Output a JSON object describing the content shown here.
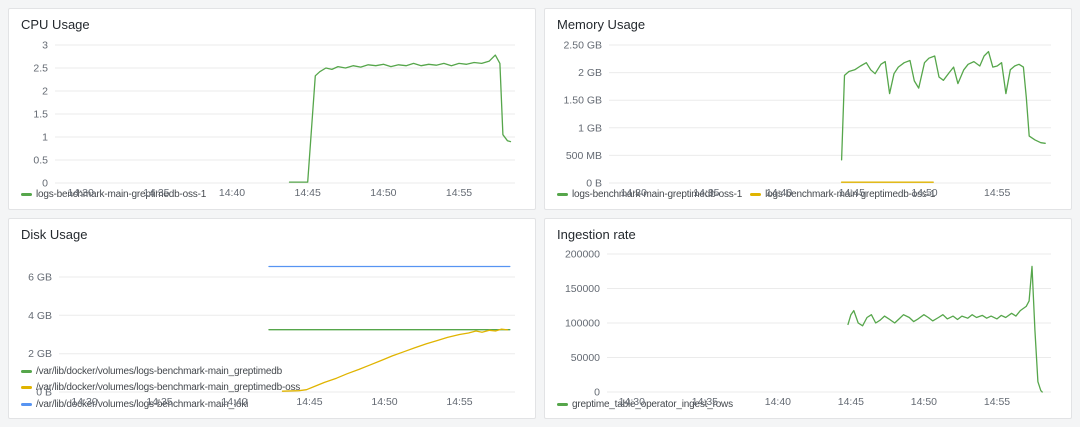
{
  "panels": [
    {
      "title": "CPU Usage"
    },
    {
      "title": "Memory Usage"
    },
    {
      "title": "Disk Usage"
    },
    {
      "title": "Ingestion rate"
    }
  ],
  "colors": {
    "green": "#56A64B",
    "yellow": "#E0B400",
    "blue": "#5794F2"
  },
  "chart_data": [
    {
      "type": "line",
      "title": "CPU Usage",
      "xlabel": "",
      "ylabel": "",
      "xlim": [
        28.3,
        58.7
      ],
      "ylim": [
        0,
        3
      ],
      "pad_left": 36,
      "grid": true,
      "legend_position": "bottom",
      "xticks": [
        {
          "v": 30,
          "label": "14:30"
        },
        {
          "v": 35,
          "label": "14:35"
        },
        {
          "v": 40,
          "label": "14:40"
        },
        {
          "v": 45,
          "label": "14:45"
        },
        {
          "v": 50,
          "label": "14:50"
        },
        {
          "v": 55,
          "label": "14:55"
        }
      ],
      "yticks": [
        {
          "v": 0,
          "label": "0"
        },
        {
          "v": 0.5,
          "label": "0.5"
        },
        {
          "v": 1,
          "label": "1"
        },
        {
          "v": 1.5,
          "label": "1.5"
        },
        {
          "v": 2,
          "label": "2"
        },
        {
          "v": 2.5,
          "label": "2.5"
        },
        {
          "v": 3,
          "label": "3"
        }
      ],
      "series": [
        {
          "name": "logs-benchmark-main-greptimedb-oss-1",
          "color": "#56A64B",
          "points": [
            [
              43.8,
              0.02
            ],
            [
              45.0,
              0.02
            ],
            [
              45.5,
              2.33
            ],
            [
              45.8,
              2.42
            ],
            [
              46.2,
              2.5
            ],
            [
              46.6,
              2.47
            ],
            [
              47.0,
              2.53
            ],
            [
              47.5,
              2.5
            ],
            [
              48.0,
              2.55
            ],
            [
              48.5,
              2.52
            ],
            [
              49.0,
              2.57
            ],
            [
              49.5,
              2.55
            ],
            [
              50.0,
              2.58
            ],
            [
              50.5,
              2.53
            ],
            [
              51.0,
              2.57
            ],
            [
              51.5,
              2.55
            ],
            [
              52.0,
              2.6
            ],
            [
              52.5,
              2.55
            ],
            [
              53.0,
              2.58
            ],
            [
              53.5,
              2.56
            ],
            [
              54.0,
              2.6
            ],
            [
              54.5,
              2.55
            ],
            [
              55.0,
              2.6
            ],
            [
              55.5,
              2.58
            ],
            [
              56.0,
              2.62
            ],
            [
              56.5,
              2.6
            ],
            [
              57.0,
              2.65
            ],
            [
              57.4,
              2.78
            ],
            [
              57.7,
              2.6
            ],
            [
              57.9,
              1.05
            ],
            [
              58.2,
              0.92
            ],
            [
              58.4,
              0.9
            ]
          ]
        }
      ]
    },
    {
      "type": "line",
      "title": "Memory Usage",
      "xlabel": "",
      "ylabel": "",
      "xlim": [
        28.3,
        58.7
      ],
      "ylim": [
        0,
        2.5
      ],
      "pad_left": 54,
      "grid": true,
      "legend_position": "bottom",
      "xticks": [
        {
          "v": 30,
          "label": "14:30"
        },
        {
          "v": 35,
          "label": "14:35"
        },
        {
          "v": 40,
          "label": "14:40"
        },
        {
          "v": 45,
          "label": "14:45"
        },
        {
          "v": 50,
          "label": "14:50"
        },
        {
          "v": 55,
          "label": "14:55"
        }
      ],
      "yticks": [
        {
          "v": 0,
          "label": "0 B"
        },
        {
          "v": 0.5,
          "label": "500 MB"
        },
        {
          "v": 1,
          "label": "1 GB"
        },
        {
          "v": 1.5,
          "label": "1.50 GB"
        },
        {
          "v": 2,
          "label": "2 GB"
        },
        {
          "v": 2.5,
          "label": "2.50 GB"
        }
      ],
      "series": [
        {
          "name": "logs-benchmark-main-greptimedb-oss-1",
          "color": "#56A64B",
          "points": [
            [
              44.3,
              0.42
            ],
            [
              44.5,
              1.95
            ],
            [
              44.8,
              2.02
            ],
            [
              45.2,
              2.05
            ],
            [
              45.6,
              2.12
            ],
            [
              46.0,
              2.18
            ],
            [
              46.3,
              2.05
            ],
            [
              46.6,
              1.98
            ],
            [
              47.0,
              2.15
            ],
            [
              47.3,
              2.2
            ],
            [
              47.6,
              1.62
            ],
            [
              47.9,
              1.98
            ],
            [
              48.2,
              2.1
            ],
            [
              48.6,
              2.18
            ],
            [
              49.0,
              2.22
            ],
            [
              49.3,
              1.85
            ],
            [
              49.6,
              1.72
            ],
            [
              50.0,
              2.18
            ],
            [
              50.3,
              2.26
            ],
            [
              50.7,
              2.3
            ],
            [
              51.0,
              1.92
            ],
            [
              51.3,
              1.86
            ],
            [
              51.7,
              2.0
            ],
            [
              52.0,
              2.1
            ],
            [
              52.3,
              1.8
            ],
            [
              52.7,
              2.05
            ],
            [
              53.0,
              2.15
            ],
            [
              53.4,
              2.2
            ],
            [
              53.8,
              2.12
            ],
            [
              54.1,
              2.3
            ],
            [
              54.4,
              2.38
            ],
            [
              54.7,
              2.1
            ],
            [
              55.0,
              2.12
            ],
            [
              55.3,
              2.18
            ],
            [
              55.6,
              1.62
            ],
            [
              55.9,
              2.05
            ],
            [
              56.2,
              2.12
            ],
            [
              56.5,
              2.15
            ],
            [
              56.8,
              2.1
            ],
            [
              57.0,
              1.55
            ],
            [
              57.2,
              0.85
            ],
            [
              57.6,
              0.78
            ],
            [
              58.0,
              0.73
            ],
            [
              58.3,
              0.72
            ]
          ]
        },
        {
          "name": "logs-benchmark-main-greptimedb-oss-1",
          "color": "#E0B400",
          "points": [
            [
              44.3,
              0.015
            ],
            [
              50.6,
              0.015
            ]
          ]
        }
      ]
    },
    {
      "type": "line",
      "title": "Disk Usage",
      "xlabel": "",
      "ylabel": "",
      "xlim": [
        28.3,
        58.7
      ],
      "ylim": [
        0,
        7.2
      ],
      "pad_left": 40,
      "grid": true,
      "legend_position": "bottom",
      "xticks": [
        {
          "v": 30,
          "label": "14:30"
        },
        {
          "v": 35,
          "label": "14:35"
        },
        {
          "v": 40,
          "label": "14:40"
        },
        {
          "v": 45,
          "label": "14:45"
        },
        {
          "v": 50,
          "label": "14:50"
        },
        {
          "v": 55,
          "label": "14:55"
        }
      ],
      "yticks": [
        {
          "v": 0,
          "label": "0 B"
        },
        {
          "v": 2,
          "label": "2 GB"
        },
        {
          "v": 4,
          "label": "4 GB"
        },
        {
          "v": 6,
          "label": "6 GB"
        }
      ],
      "series": [
        {
          "name": "/var/lib/docker/volumes/logs-benchmark-main_greptimedb",
          "color": "#56A64B",
          "points": [
            [
              42.3,
              3.25
            ],
            [
              58.35,
              3.25
            ]
          ]
        },
        {
          "name": "/var/lib/docker/volumes/logs-benchmark-main_greptimedb-oss",
          "color": "#E0B400",
          "points": [
            [
              43.2,
              0.04
            ],
            [
              44.3,
              0.07
            ],
            [
              44.8,
              0.12
            ],
            [
              45.3,
              0.28
            ],
            [
              46.0,
              0.5
            ],
            [
              46.8,
              0.72
            ],
            [
              47.5,
              0.95
            ],
            [
              48.3,
              1.18
            ],
            [
              49.0,
              1.4
            ],
            [
              49.8,
              1.65
            ],
            [
              50.5,
              1.88
            ],
            [
              51.3,
              2.1
            ],
            [
              52.0,
              2.3
            ],
            [
              52.8,
              2.52
            ],
            [
              53.5,
              2.68
            ],
            [
              54.2,
              2.85
            ],
            [
              55.0,
              3.0
            ],
            [
              55.6,
              3.08
            ],
            [
              56.1,
              3.18
            ],
            [
              56.5,
              3.12
            ],
            [
              57.0,
              3.22
            ],
            [
              57.4,
              3.18
            ],
            [
              57.8,
              3.28
            ],
            [
              58.2,
              3.24
            ]
          ]
        },
        {
          "name": "/var/lib/docker/volumes/logs-benchmark-main_loki",
          "color": "#5794F2",
          "points": [
            [
              42.3,
              6.55
            ],
            [
              58.35,
              6.55
            ]
          ]
        }
      ]
    },
    {
      "type": "line",
      "title": "Ingestion rate",
      "xlabel": "",
      "ylabel": "",
      "xlim": [
        28.3,
        58.7
      ],
      "ylim": [
        0,
        200000
      ],
      "pad_left": 52,
      "grid": true,
      "legend_position": "bottom",
      "xticks": [
        {
          "v": 30,
          "label": "14:30"
        },
        {
          "v": 35,
          "label": "14:35"
        },
        {
          "v": 40,
          "label": "14:40"
        },
        {
          "v": 45,
          "label": "14:45"
        },
        {
          "v": 50,
          "label": "14:50"
        },
        {
          "v": 55,
          "label": "14:55"
        }
      ],
      "yticks": [
        {
          "v": 0,
          "label": "0"
        },
        {
          "v": 50000,
          "label": "50000"
        },
        {
          "v": 100000,
          "label": "100000"
        },
        {
          "v": 150000,
          "label": "150000"
        },
        {
          "v": 200000,
          "label": "200000"
        }
      ],
      "series": [
        {
          "name": "greptime_table_operator_ingest_rows",
          "color": "#56A64B",
          "points": [
            [
              44.8,
              98000
            ],
            [
              45.0,
              112000
            ],
            [
              45.2,
              118000
            ],
            [
              45.5,
              100000
            ],
            [
              45.8,
              96000
            ],
            [
              46.1,
              108000
            ],
            [
              46.4,
              112000
            ],
            [
              46.7,
              100000
            ],
            [
              47.0,
              104000
            ],
            [
              47.3,
              110000
            ],
            [
              47.6,
              106000
            ],
            [
              48.0,
              100000
            ],
            [
              48.3,
              106000
            ],
            [
              48.6,
              112000
            ],
            [
              49.0,
              108000
            ],
            [
              49.3,
              102000
            ],
            [
              49.6,
              106000
            ],
            [
              50.0,
              112000
            ],
            [
              50.3,
              108000
            ],
            [
              50.6,
              103000
            ],
            [
              51.0,
              108000
            ],
            [
              51.3,
              112000
            ],
            [
              51.6,
              106000
            ],
            [
              52.0,
              110000
            ],
            [
              52.3,
              105000
            ],
            [
              52.6,
              110000
            ],
            [
              53.0,
              107000
            ],
            [
              53.3,
              112000
            ],
            [
              53.6,
              108000
            ],
            [
              54.0,
              111000
            ],
            [
              54.3,
              107000
            ],
            [
              54.6,
              110000
            ],
            [
              55.0,
              106000
            ],
            [
              55.3,
              111000
            ],
            [
              55.6,
              108000
            ],
            [
              56.0,
              114000
            ],
            [
              56.3,
              110000
            ],
            [
              56.6,
              118000
            ],
            [
              57.0,
              124000
            ],
            [
              57.2,
              132000
            ],
            [
              57.4,
              182000
            ],
            [
              57.6,
              90000
            ],
            [
              57.8,
              15000
            ],
            [
              58.0,
              2000
            ],
            [
              58.1,
              0
            ]
          ]
        }
      ]
    }
  ]
}
